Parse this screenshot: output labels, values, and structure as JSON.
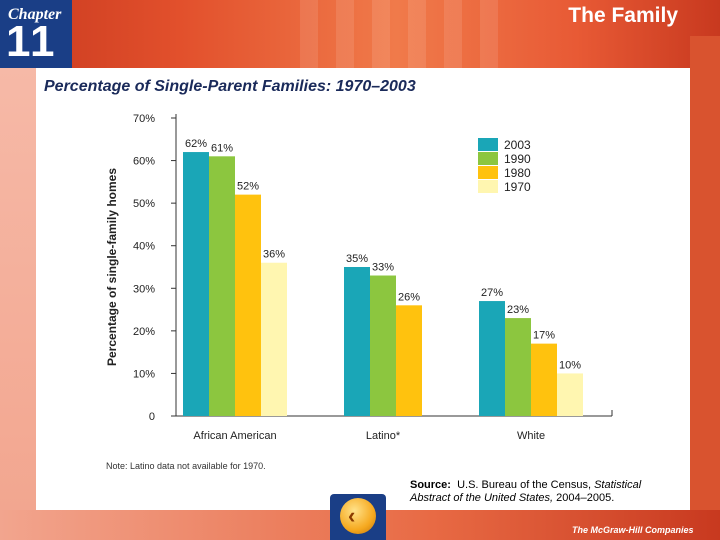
{
  "banner": {
    "chapter_word": "Chapter",
    "chapter_number": "11",
    "section_title": "The Family"
  },
  "slide_title": "Percentage of Single-Parent Families: 1970–2003",
  "note": "Note: Latino data not available for 1970.",
  "source": {
    "label": "Source:",
    "text_plain": "U.S. Bureau of the Census,",
    "text_italic": "Statistical Abstract of the United States,",
    "text_tail": "2004–2005."
  },
  "publisher": "The McGraw-Hill Companies",
  "back_button": {
    "glyph": "‹"
  },
  "colors": {
    "2003": "#1aa6b7",
    "1990": "#8cc63f",
    "1980": "#ffc20e",
    "1970": "#fff6b0"
  },
  "chart_data": {
    "type": "bar",
    "title": "Percentage of Single-Parent Families: 1970–2003",
    "xlabel": "",
    "ylabel": "Percentage of single-family homes",
    "ylim": [
      0,
      70
    ],
    "yticks": [
      "0",
      "10%",
      "20%",
      "30%",
      "40%",
      "50%",
      "60%",
      "70%"
    ],
    "categories": [
      "African American",
      "Latino*",
      "White"
    ],
    "series": [
      {
        "name": "2003",
        "values": [
          62,
          35,
          27
        ],
        "labels": [
          "62%",
          "35%",
          "27%"
        ]
      },
      {
        "name": "1990",
        "values": [
          61,
          33,
          23
        ],
        "labels": [
          "61%",
          "33%",
          "23%"
        ]
      },
      {
        "name": "1980",
        "values": [
          52,
          26,
          17
        ],
        "labels": [
          "52%",
          "26%",
          "17%"
        ]
      },
      {
        "name": "1970",
        "values": [
          36,
          null,
          10
        ],
        "labels": [
          "36%",
          "",
          "10%"
        ]
      }
    ],
    "legend": [
      "2003",
      "1990",
      "1980",
      "1970"
    ],
    "legend_position": "top-right",
    "grid": false
  }
}
